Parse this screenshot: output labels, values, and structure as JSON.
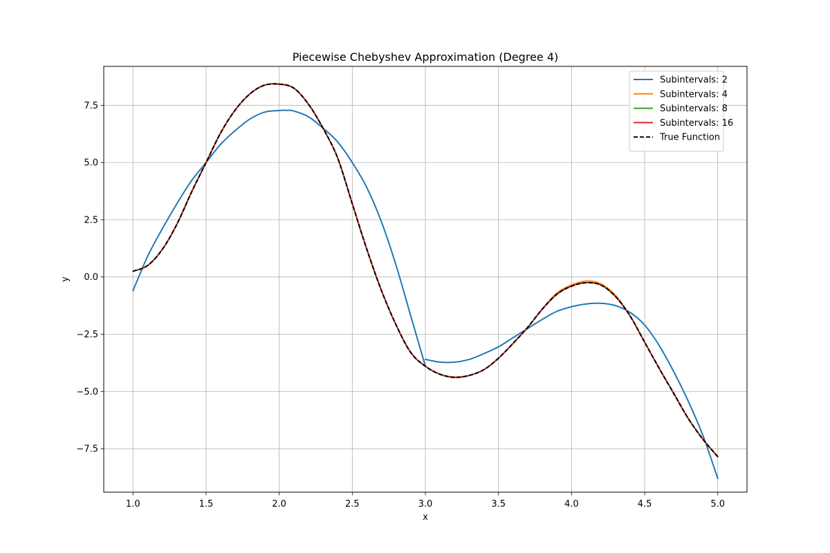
{
  "chart_data": {
    "type": "line",
    "title": "Piecewise Chebyshev Approximation (Degree 4)",
    "xlabel": "x",
    "ylabel": "y",
    "xlim": [
      0.8,
      5.2
    ],
    "ylim": [
      -9.4,
      9.2
    ],
    "grid": true,
    "legend_position": "top-right",
    "x_ticks": [
      1.0,
      1.5,
      2.0,
      2.5,
      3.0,
      3.5,
      4.0,
      4.5,
      5.0
    ],
    "x_tick_labels": [
      "1.0",
      "1.5",
      "2.0",
      "2.5",
      "3.0",
      "3.5",
      "4.0",
      "4.5",
      "5.0"
    ],
    "y_ticks": [
      -7.5,
      -5.0,
      -2.5,
      0.0,
      2.5,
      5.0,
      7.5
    ],
    "y_tick_labels": [
      "−7.5",
      "−5.0",
      "−2.5",
      "0.0",
      "2.5",
      "5.0",
      "7.5"
    ],
    "series": [
      {
        "name": "Subintervals: 2",
        "color": "#1f77b4",
        "style": "solid",
        "segments": [
          {
            "x": [
              1.0,
              1.1,
              1.2,
              1.3,
              1.4,
              1.5,
              1.6,
              1.7,
              1.8,
              1.9,
              2.0,
              2.05,
              2.1,
              2.2,
              2.3,
              2.4,
              2.5,
              2.6,
              2.7,
              2.8,
              2.9,
              3.0
            ],
            "y": [
              -0.6,
              0.9,
              2.1,
              3.2,
              4.2,
              5.0,
              5.8,
              6.4,
              6.9,
              7.2,
              7.27,
              7.28,
              7.25,
              7.0,
              6.5,
              5.9,
              5.0,
              3.9,
              2.4,
              0.5,
              -1.7,
              -3.9
            ]
          },
          {
            "x": [
              3.0,
              3.1,
              3.2,
              3.3,
              3.4,
              3.5,
              3.6,
              3.7,
              3.8,
              3.9,
              4.0,
              4.1,
              4.2,
              4.3,
              4.4,
              4.5,
              4.6,
              4.7,
              4.8,
              4.9,
              5.0
            ],
            "y": [
              -3.6,
              -3.72,
              -3.72,
              -3.6,
              -3.35,
              -3.05,
              -2.65,
              -2.25,
              -1.85,
              -1.5,
              -1.3,
              -1.18,
              -1.15,
              -1.25,
              -1.55,
              -2.1,
              -3.0,
              -4.15,
              -5.45,
              -6.95,
              -8.8
            ]
          }
        ]
      },
      {
        "name": "Subintervals: 4",
        "color": "#ff7f0e",
        "style": "solid",
        "segments": [
          {
            "x": [
              1.0,
              1.1,
              1.2,
              1.3,
              1.4,
              1.5,
              1.6,
              1.7,
              1.8,
              1.9,
              2.0,
              2.1,
              2.2,
              2.3,
              2.4,
              2.5,
              2.6,
              2.7,
              2.8,
              2.9,
              3.0,
              3.1,
              3.2,
              3.3,
              3.4,
              3.5,
              3.6,
              3.7,
              3.8,
              3.9,
              4.0,
              4.1,
              4.2,
              4.3,
              4.4,
              4.5,
              4.6,
              4.7,
              4.8,
              4.9,
              5.0
            ],
            "y": [
              0.25,
              0.5,
              1.2,
              2.3,
              3.7,
              5.0,
              6.3,
              7.3,
              8.0,
              8.38,
              8.44,
              8.25,
              7.55,
              6.5,
              5.2,
              3.2,
              1.2,
              -0.6,
              -2.1,
              -3.3,
              -3.9,
              -4.25,
              -4.4,
              -4.3,
              -4.05,
              -3.55,
              -2.9,
              -2.2,
              -1.4,
              -0.7,
              -0.35,
              -0.18,
              -0.3,
              -0.8,
              -1.7,
              -2.85,
              -4.0,
              -5.1,
              -6.2,
              -7.1,
              -7.85
            ]
          }
        ]
      },
      {
        "name": "Subintervals: 8",
        "color": "#2ca02c",
        "style": "solid",
        "segments": [
          {
            "x": [
              1.0,
              1.1,
              1.2,
              1.3,
              1.4,
              1.5,
              1.6,
              1.7,
              1.8,
              1.9,
              2.0,
              2.1,
              2.2,
              2.3,
              2.4,
              2.5,
              2.6,
              2.7,
              2.8,
              2.9,
              3.0,
              3.1,
              3.2,
              3.3,
              3.4,
              3.5,
              3.6,
              3.7,
              3.8,
              3.9,
              4.0,
              4.1,
              4.2,
              4.3,
              4.4,
              4.5,
              4.6,
              4.7,
              4.8,
              4.9,
              5.0
            ],
            "y": [
              0.25,
              0.5,
              1.2,
              2.3,
              3.7,
              5.0,
              6.3,
              7.3,
              8.0,
              8.38,
              8.42,
              8.25,
              7.55,
              6.5,
              5.2,
              3.2,
              1.2,
              -0.6,
              -2.1,
              -3.3,
              -3.9,
              -4.25,
              -4.38,
              -4.3,
              -4.05,
              -3.55,
              -2.9,
              -2.2,
              -1.4,
              -0.75,
              -0.4,
              -0.25,
              -0.35,
              -0.85,
              -1.7,
              -2.85,
              -4.0,
              -5.1,
              -6.2,
              -7.1,
              -7.85
            ]
          }
        ]
      },
      {
        "name": "Subintervals: 16",
        "color": "#d62728",
        "style": "solid",
        "segments": [
          {
            "x": [
              1.0,
              1.1,
              1.2,
              1.3,
              1.4,
              1.5,
              1.6,
              1.7,
              1.8,
              1.9,
              2.0,
              2.1,
              2.2,
              2.3,
              2.4,
              2.5,
              2.6,
              2.7,
              2.8,
              2.9,
              3.0,
              3.1,
              3.2,
              3.3,
              3.4,
              3.5,
              3.6,
              3.7,
              3.8,
              3.9,
              4.0,
              4.1,
              4.2,
              4.3,
              4.4,
              4.5,
              4.6,
              4.7,
              4.8,
              4.9,
              5.0
            ],
            "y": [
              0.25,
              0.5,
              1.2,
              2.3,
              3.7,
              5.0,
              6.3,
              7.3,
              8.0,
              8.38,
              8.42,
              8.25,
              7.55,
              6.5,
              5.2,
              3.2,
              1.2,
              -0.6,
              -2.1,
              -3.3,
              -3.9,
              -4.25,
              -4.38,
              -4.3,
              -4.05,
              -3.55,
              -2.9,
              -2.2,
              -1.4,
              -0.75,
              -0.4,
              -0.25,
              -0.35,
              -0.85,
              -1.7,
              -2.85,
              -4.0,
              -5.1,
              -6.2,
              -7.1,
              -7.85
            ]
          }
        ]
      },
      {
        "name": "True Function",
        "color": "#000000",
        "style": "dashed",
        "segments": [
          {
            "x": [
              1.0,
              1.1,
              1.2,
              1.3,
              1.4,
              1.5,
              1.6,
              1.7,
              1.8,
              1.9,
              2.0,
              2.1,
              2.2,
              2.3,
              2.4,
              2.5,
              2.6,
              2.7,
              2.8,
              2.9,
              3.0,
              3.1,
              3.2,
              3.3,
              3.4,
              3.5,
              3.6,
              3.7,
              3.8,
              3.9,
              4.0,
              4.1,
              4.2,
              4.3,
              4.4,
              4.5,
              4.6,
              4.7,
              4.8,
              4.9,
              5.0
            ],
            "y": [
              0.25,
              0.5,
              1.2,
              2.3,
              3.7,
              5.0,
              6.3,
              7.3,
              8.0,
              8.38,
              8.42,
              8.25,
              7.55,
              6.5,
              5.2,
              3.2,
              1.2,
              -0.6,
              -2.1,
              -3.3,
              -3.9,
              -4.25,
              -4.38,
              -4.3,
              -4.05,
              -3.55,
              -2.9,
              -2.2,
              -1.4,
              -0.75,
              -0.4,
              -0.25,
              -0.35,
              -0.85,
              -1.7,
              -2.85,
              -4.0,
              -5.1,
              -6.2,
              -7.1,
              -7.85
            ]
          }
        ]
      }
    ]
  }
}
